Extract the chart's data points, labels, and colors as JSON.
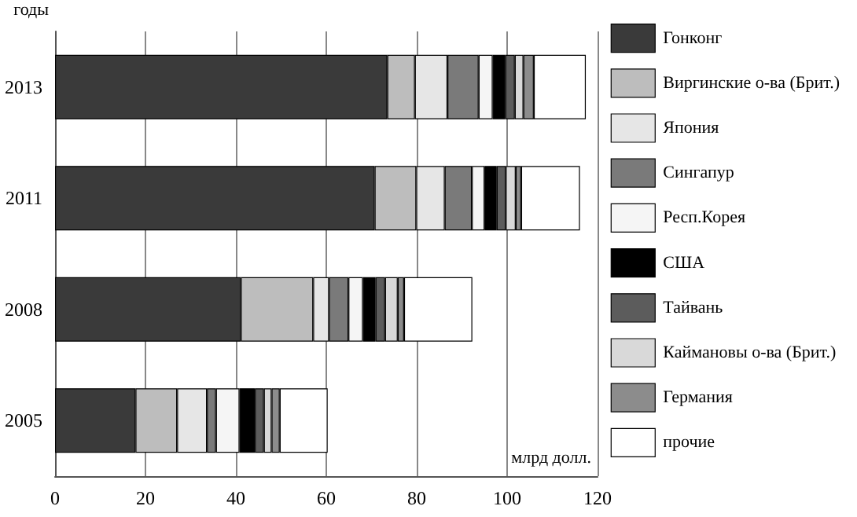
{
  "chart_data": {
    "type": "bar",
    "orientation": "horizontal",
    "stacked": true,
    "xlabel": "млрд долл.",
    "ylabel": "годы",
    "categories": [
      "2013",
      "2011",
      "2008",
      "2005"
    ],
    "series": [
      {
        "name": "Гонконг",
        "color": "#3a3a3a",
        "values": [
          73.5,
          70.7,
          41.1,
          17.8
        ]
      },
      {
        "name": "Виргинские о-ва (Брит.)",
        "color": "#bdbdbd",
        "values": [
          6.1,
          9.2,
          16,
          9.2
        ]
      },
      {
        "name": "Япония",
        "color": "#e6e6e6",
        "values": [
          7.2,
          6.3,
          3.5,
          6.6
        ]
      },
      {
        "name": "Сингапур",
        "color": "#7a7a7a",
        "values": [
          6.9,
          6,
          4.3,
          2
        ]
      },
      {
        "name": "Респ.Корея",
        "color": "#f5f5f5",
        "values": [
          3.1,
          2.8,
          3.2,
          5.2
        ]
      },
      {
        "name": "США",
        "color": "#000000",
        "values": [
          2.8,
          2.7,
          2.8,
          3.4
        ]
      },
      {
        "name": "Тайвань",
        "color": "#5c5c5c",
        "values": [
          2.1,
          2,
          2.1,
          2
        ]
      },
      {
        "name": "Каймановы о-ва (Брит.)",
        "color": "#d9d9d9",
        "values": [
          1.9,
          2.2,
          2.8,
          1.7
        ]
      },
      {
        "name": "Германия",
        "color": "#8c8c8c",
        "values": [
          2.3,
          1.2,
          1.4,
          1.8
        ]
      },
      {
        "name": "прочие",
        "color": "#ffffff",
        "values": [
          11.5,
          13,
          15.1,
          10.6
        ]
      }
    ],
    "xlim": [
      0,
      120
    ],
    "xticks": [
      0,
      20,
      40,
      60,
      80,
      100,
      120
    ],
    "grid": "x",
    "legend": "right"
  }
}
